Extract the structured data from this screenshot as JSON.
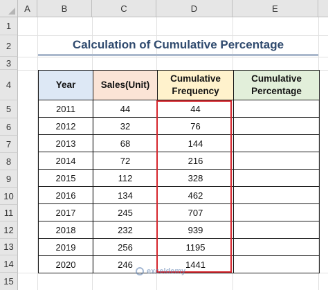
{
  "columns": [
    "A",
    "B",
    "C",
    "D",
    "E"
  ],
  "rows": [
    "1",
    "2",
    "3",
    "4",
    "5",
    "6",
    "7",
    "8",
    "9",
    "10",
    "11",
    "12",
    "13",
    "14",
    "15"
  ],
  "title": "Calculation of Cumulative Percentage",
  "headers": {
    "year": "Year",
    "sales": "Sales(Unit)",
    "cumfreq_line1": "Cumulative",
    "cumfreq_line2": "Frequency",
    "cumpct_line1": "Cumulative",
    "cumpct_line2": "Percentage"
  },
  "table_rows": [
    {
      "year": "2011",
      "sales": "44",
      "cumfreq": "44",
      "cumpct": ""
    },
    {
      "year": "2012",
      "sales": "32",
      "cumfreq": "76",
      "cumpct": ""
    },
    {
      "year": "2013",
      "sales": "68",
      "cumfreq": "144",
      "cumpct": ""
    },
    {
      "year": "2014",
      "sales": "72",
      "cumfreq": "216",
      "cumpct": ""
    },
    {
      "year": "2015",
      "sales": "112",
      "cumfreq": "328",
      "cumpct": ""
    },
    {
      "year": "2016",
      "sales": "134",
      "cumfreq": "462",
      "cumpct": ""
    },
    {
      "year": "2017",
      "sales": "245",
      "cumfreq": "707",
      "cumpct": ""
    },
    {
      "year": "2018",
      "sales": "232",
      "cumfreq": "939",
      "cumpct": ""
    },
    {
      "year": "2019",
      "sales": "256",
      "cumfreq": "1195",
      "cumpct": ""
    },
    {
      "year": "2020",
      "sales": "246",
      "cumfreq": "1441",
      "cumpct": ""
    }
  ],
  "watermark": "exceldemy",
  "colors": {
    "header_bg": "#e6e6e6",
    "title_text": "#2f4a6e",
    "year_header_bg": "#dde8f5",
    "sales_header_bg": "#fbe4d6",
    "cumfreq_header_bg": "#fff2cc",
    "cumpct_header_bg": "#e2efda",
    "highlight_border": "#d6262d"
  }
}
